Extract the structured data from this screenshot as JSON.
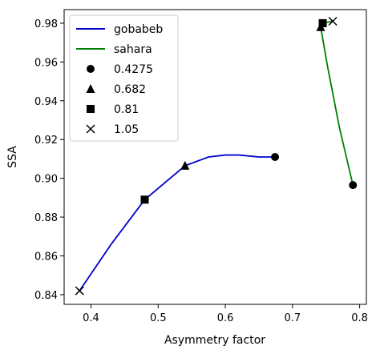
{
  "chart_data": {
    "type": "line",
    "xlabel": "Asymmetry factor",
    "ylabel": "SSA",
    "xlim": [
      0.36,
      0.81
    ],
    "ylim": [
      0.835,
      0.987
    ],
    "xticks": [
      "0.4",
      "0.5",
      "0.6",
      "0.7",
      "0.8"
    ],
    "yticks": [
      "0.84",
      "0.86",
      "0.88",
      "0.90",
      "0.92",
      "0.94",
      "0.96",
      "0.98"
    ],
    "grid": false,
    "legend_position": "top-left",
    "series": [
      {
        "name": "gobabeb",
        "color": "#0000cc",
        "curve_x": [
          0.383,
          0.43,
          0.48,
          0.54,
          0.575,
          0.6,
          0.62,
          0.65,
          0.674
        ],
        "curve_y": [
          0.842,
          0.866,
          0.889,
          0.9065,
          0.911,
          0.912,
          0.912,
          0.911,
          0.911
        ],
        "markers": [
          {
            "wavelength": "0.4275",
            "x": 0.674,
            "y": 0.911
          },
          {
            "wavelength": "0.682",
            "x": 0.54,
            "y": 0.9065
          },
          {
            "wavelength": "0.81",
            "x": 0.48,
            "y": 0.889
          },
          {
            "wavelength": "1.05",
            "x": 0.383,
            "y": 0.842
          }
        ]
      },
      {
        "name": "sahara",
        "color": "#008000",
        "curve_x": [
          0.79,
          0.77,
          0.752,
          0.742,
          0.745,
          0.76
        ],
        "curve_y": [
          0.8965,
          0.926,
          0.958,
          0.978,
          0.98,
          0.981
        ],
        "markers": [
          {
            "wavelength": "0.4275",
            "x": 0.79,
            "y": 0.8965
          },
          {
            "wavelength": "0.682",
            "x": 0.742,
            "y": 0.978
          },
          {
            "wavelength": "0.81",
            "x": 0.745,
            "y": 0.98
          },
          {
            "wavelength": "1.05",
            "x": 0.76,
            "y": 0.981
          }
        ]
      }
    ],
    "legend": [
      {
        "kind": "line",
        "label": "gobabeb",
        "color": "#0000cc"
      },
      {
        "kind": "line",
        "label": "sahara",
        "color": "#008000"
      },
      {
        "kind": "marker",
        "shape": "circle",
        "label": "0.4275"
      },
      {
        "kind": "marker",
        "shape": "triangle",
        "label": "0.682"
      },
      {
        "kind": "marker",
        "shape": "square",
        "label": "0.81"
      },
      {
        "kind": "marker",
        "shape": "x",
        "label": "1.05"
      }
    ]
  }
}
